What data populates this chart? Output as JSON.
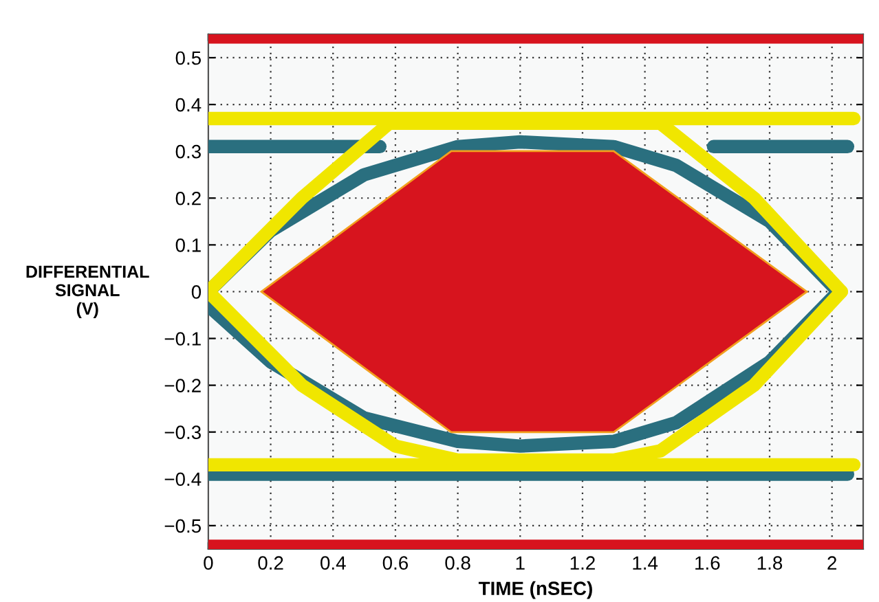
{
  "chart_data": {
    "type": "line",
    "xlabel": "TIME (nSEC)",
    "ylabel": "DIFFERENTIAL SIGNAL (V)",
    "xlim": [
      0,
      2.1
    ],
    "xticks": [
      0,
      0.2,
      0.4,
      0.6,
      0.8,
      1,
      1.2,
      1.4,
      1.6,
      1.8,
      2
    ],
    "ylim": [
      -0.55,
      0.55
    ],
    "yticks": [
      {
        "value": -0.5,
        "label": "−0.5"
      },
      {
        "value": -0.4,
        "label": "−0.4"
      },
      {
        "value": -0.3,
        "label": "−0.3"
      },
      {
        "value": -0.2,
        "label": "−0.2"
      },
      {
        "value": -0.1,
        "label": "−0.1"
      },
      0,
      0.1,
      0.2,
      0.3,
      0.4,
      0.5
    ],
    "grid": true,
    "line_style": "solid",
    "bands": [
      {
        "axis": "y",
        "from": 0.53,
        "to": 0.55,
        "color": "#d7141e"
      },
      {
        "axis": "y",
        "from": -0.55,
        "to": -0.53,
        "color": "#d7141e"
      }
    ],
    "series": [
      {
        "color": "#2a6f7f",
        "x": [
          0,
          0.55
        ],
        "values": [
          0.31,
          0.31
        ]
      },
      {
        "color": "#2a6f7f",
        "x": [
          1.62,
          2.05
        ],
        "values": [
          0.31,
          0.31
        ]
      },
      {
        "color": "#2a6f7f",
        "x": [
          0,
          0.2,
          0.5,
          0.8,
          1.0,
          1.3,
          1.5,
          1.8,
          2.02
        ],
        "values": [
          0,
          0.13,
          0.25,
          0.31,
          0.32,
          0.31,
          0.27,
          0.15,
          0
        ]
      },
      {
        "color": "#2a6f7f",
        "x": [
          0,
          0.2,
          0.5,
          0.8,
          1.0,
          1.3,
          1.5,
          1.8,
          2.02
        ],
        "values": [
          -0.03,
          -0.15,
          -0.27,
          -0.32,
          -0.33,
          -0.32,
          -0.28,
          -0.15,
          0
        ]
      },
      {
        "color": "#2a6f7f",
        "x": [
          0,
          2.05
        ],
        "values": [
          -0.39,
          -0.39
        ]
      },
      {
        "color": "#f0e600",
        "x": [
          0,
          2.07
        ],
        "values": [
          0.37,
          0.37
        ]
      },
      {
        "color": "#f0e600",
        "x": [
          0,
          2.07
        ],
        "values": [
          -0.37,
          -0.37
        ]
      },
      {
        "color": "#f0e600",
        "x": [
          0,
          0.3,
          0.58,
          1.45,
          1.75,
          2.03
        ],
        "values": [
          0,
          0.2,
          0.36,
          0.36,
          0.2,
          0
        ]
      },
      {
        "color": "#f0e600",
        "x": [
          0,
          0.3,
          0.6,
          0.8,
          1.3,
          1.45,
          1.75,
          2.03
        ],
        "values": [
          0,
          -0.2,
          -0.33,
          -0.36,
          -0.36,
          -0.34,
          -0.2,
          0
        ]
      }
    ]
  }
}
